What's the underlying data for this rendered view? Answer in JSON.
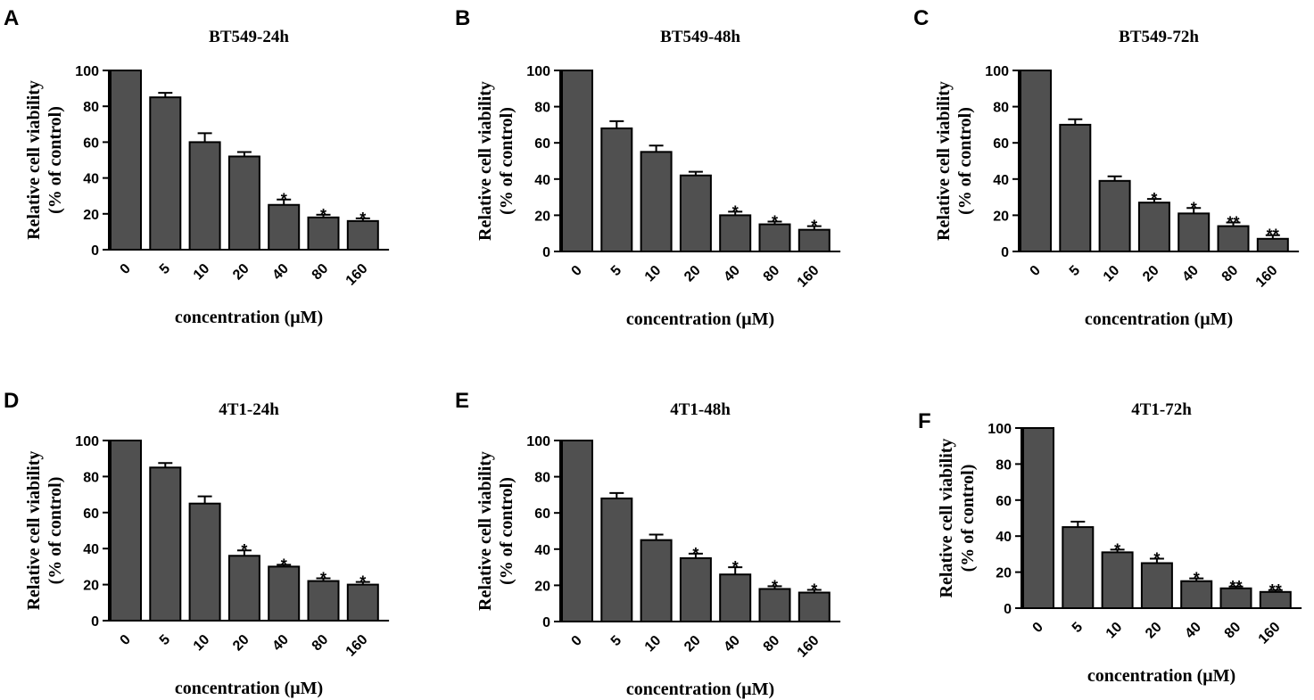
{
  "chart_data": [
    {
      "type": "bar",
      "panel": "A",
      "title": "BT549-24h",
      "ylabel": "Relative cell viability",
      "ylabel2": "(% of control)",
      "xlabel": "concentration (μM)",
      "categories": [
        "0",
        "5",
        "10",
        "20",
        "40",
        "80",
        "160"
      ],
      "values": [
        100,
        85,
        60,
        52,
        25,
        18,
        16
      ],
      "errors": [
        0,
        2.5,
        5,
        2.5,
        3,
        1.5,
        1.5
      ],
      "significance": [
        "",
        "",
        "",
        "",
        "*",
        "*",
        "*"
      ],
      "ylim": [
        0,
        100
      ],
      "yticks": [
        "0",
        "20",
        "40",
        "60",
        "80",
        "100"
      ]
    },
    {
      "type": "bar",
      "panel": "B",
      "title": "BT549-48h",
      "ylabel": "Relative cell viability",
      "ylabel2": "(% of control)",
      "xlabel": "concentration (μM)",
      "categories": [
        "0",
        "5",
        "10",
        "20",
        "40",
        "80",
        "160"
      ],
      "values": [
        100,
        68,
        55,
        42,
        20,
        15,
        12
      ],
      "errors": [
        0,
        4,
        3.5,
        2,
        2,
        1.5,
        2
      ],
      "significance": [
        "",
        "",
        "",
        "",
        "*",
        "*",
        "*"
      ],
      "ylim": [
        0,
        100
      ],
      "yticks": [
        "0",
        "20",
        "40",
        "60",
        "80",
        "100"
      ]
    },
    {
      "type": "bar",
      "panel": "C",
      "title": "BT549-72h",
      "ylabel": "Relative cell viability",
      "ylabel2": "(% of control)",
      "xlabel": "concentration (μM)",
      "categories": [
        "0",
        "5",
        "10",
        "20",
        "40",
        "80",
        "160"
      ],
      "values": [
        100,
        70,
        39,
        27,
        21,
        14,
        7
      ],
      "errors": [
        0,
        3,
        2.5,
        2,
        3,
        2,
        2
      ],
      "significance": [
        "",
        "",
        "",
        "*",
        "*",
        "**",
        "**"
      ],
      "ylim": [
        0,
        100
      ],
      "yticks": [
        "0",
        "20",
        "40",
        "60",
        "80",
        "100"
      ]
    },
    {
      "type": "bar",
      "panel": "D",
      "title": "4T1-24h",
      "ylabel": "Relative cell viability",
      "ylabel2": "(% of control)",
      "xlabel": "concentration (μM)",
      "categories": [
        "0",
        "5",
        "10",
        "20",
        "40",
        "80",
        "160"
      ],
      "values": [
        100,
        85,
        65,
        36,
        30,
        22,
        20
      ],
      "errors": [
        0,
        2.5,
        4,
        3,
        1,
        1.5,
        1.5
      ],
      "significance": [
        "",
        "",
        "",
        "*",
        "*",
        "*",
        "*"
      ],
      "ylim": [
        0,
        100
      ],
      "yticks": [
        "0",
        "20",
        "40",
        "60",
        "80",
        "100"
      ]
    },
    {
      "type": "bar",
      "panel": "E",
      "title": "4T1-48h",
      "ylabel": "Relative cell viability",
      "ylabel2": "(% of control)",
      "xlabel": "concentration (μM)",
      "categories": [
        "0",
        "5",
        "10",
        "20",
        "40",
        "80",
        "160"
      ],
      "values": [
        100,
        68,
        45,
        35,
        26,
        18,
        16
      ],
      "errors": [
        0,
        3,
        3,
        2.5,
        4,
        1.5,
        1.5
      ],
      "significance": [
        "",
        "",
        "",
        "*",
        "*",
        "*",
        "*"
      ],
      "ylim": [
        0,
        100
      ],
      "yticks": [
        "0",
        "20",
        "40",
        "60",
        "80",
        "100"
      ]
    },
    {
      "type": "bar",
      "panel": "F",
      "title": "4T1-72h",
      "ylabel": "Relative cell viability",
      "ylabel2": "(% of control)",
      "xlabel": "concentration (μM)",
      "categories": [
        "0",
        "5",
        "10",
        "20",
        "40",
        "80",
        "160"
      ],
      "values": [
        100,
        45,
        31,
        25,
        15,
        11,
        9
      ],
      "errors": [
        0,
        3,
        1.5,
        2.5,
        1.5,
        1,
        1
      ],
      "significance": [
        "",
        "",
        "*",
        "*",
        "*",
        "**",
        "**"
      ],
      "ylim": [
        0,
        100
      ],
      "yticks": [
        "0",
        "20",
        "40",
        "60",
        "80",
        "100"
      ]
    }
  ]
}
